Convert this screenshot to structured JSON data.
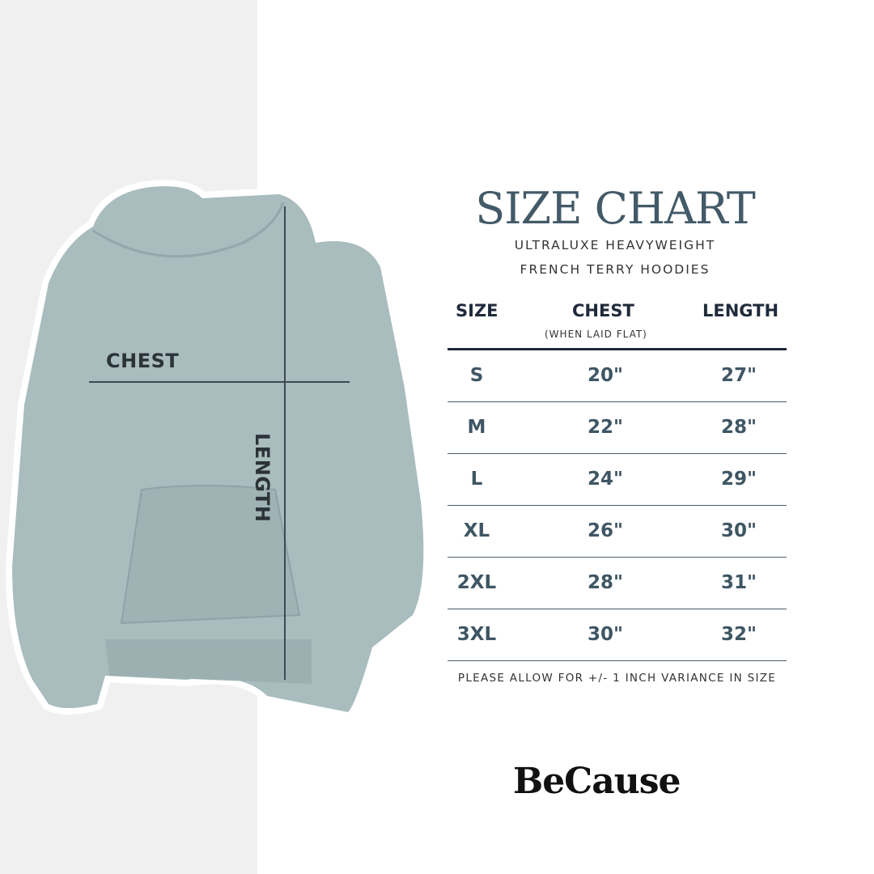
{
  "diagram": {
    "chest_label": "CHEST",
    "length_label": "LENGTH",
    "hoodie_color": "#a9bcbe"
  },
  "title": "SIZE CHART",
  "subtitle": [
    "ULTRALUXE HEAVYWEIGHT",
    "FRENCH TERRY HOODIES"
  ],
  "table": {
    "headers": [
      "SIZE",
      "CHEST",
      "LENGTH"
    ],
    "chest_note": "(WHEN LAID FLAT)",
    "rows": [
      [
        "S",
        "20\"",
        "27\""
      ],
      [
        "M",
        "22\"",
        "28\""
      ],
      [
        "L",
        "24\"",
        "29\""
      ],
      [
        "XL",
        "26\"",
        "30\""
      ],
      [
        "2XL",
        "28\"",
        "31\""
      ],
      [
        "3XL",
        "30\"",
        "32\""
      ]
    ]
  },
  "note": "PLEASE ALLOW FOR +/- 1 INCH VARIANCE IN SIZE",
  "brand": "BeCause",
  "colors": {
    "title": "#435a68",
    "rows": "#3f5664",
    "header": "#1f2a3a"
  }
}
